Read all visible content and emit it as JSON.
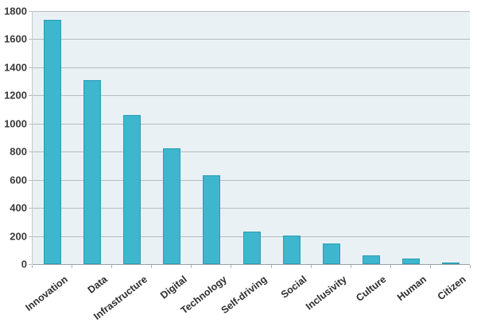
{
  "chart_data": {
    "type": "bar",
    "title": "",
    "xlabel": "",
    "ylabel": "",
    "categories": [
      "Innovation",
      "Data",
      "Infrastructure",
      "Digital",
      "Technology",
      "Self-driving",
      "Social",
      "Inclusivity",
      "Culture",
      "Human",
      "Citizen"
    ],
    "values": [
      1740,
      1310,
      1060,
      825,
      630,
      230,
      205,
      145,
      60,
      40,
      10
    ],
    "ylim": [
      0,
      1800
    ],
    "ytick_interval": 200,
    "ytick_labels": [
      "0",
      "200",
      "400",
      "600",
      "800",
      "1000",
      "1200",
      "1400",
      "1600",
      "1800"
    ],
    "grid": true,
    "legend": false,
    "colors": {
      "bar_fill": "#3db6ce",
      "bar_border": "#2c9db7",
      "plot_background": "#e9f1f4",
      "gridline": "#b6bcbf",
      "axis_baseline": "#9aa1a5",
      "tick": "#9bb6c2",
      "y_label_text": "#3a3a3a",
      "x_label_text": "#2e2e2e",
      "page_background": "#ffffff"
    }
  }
}
